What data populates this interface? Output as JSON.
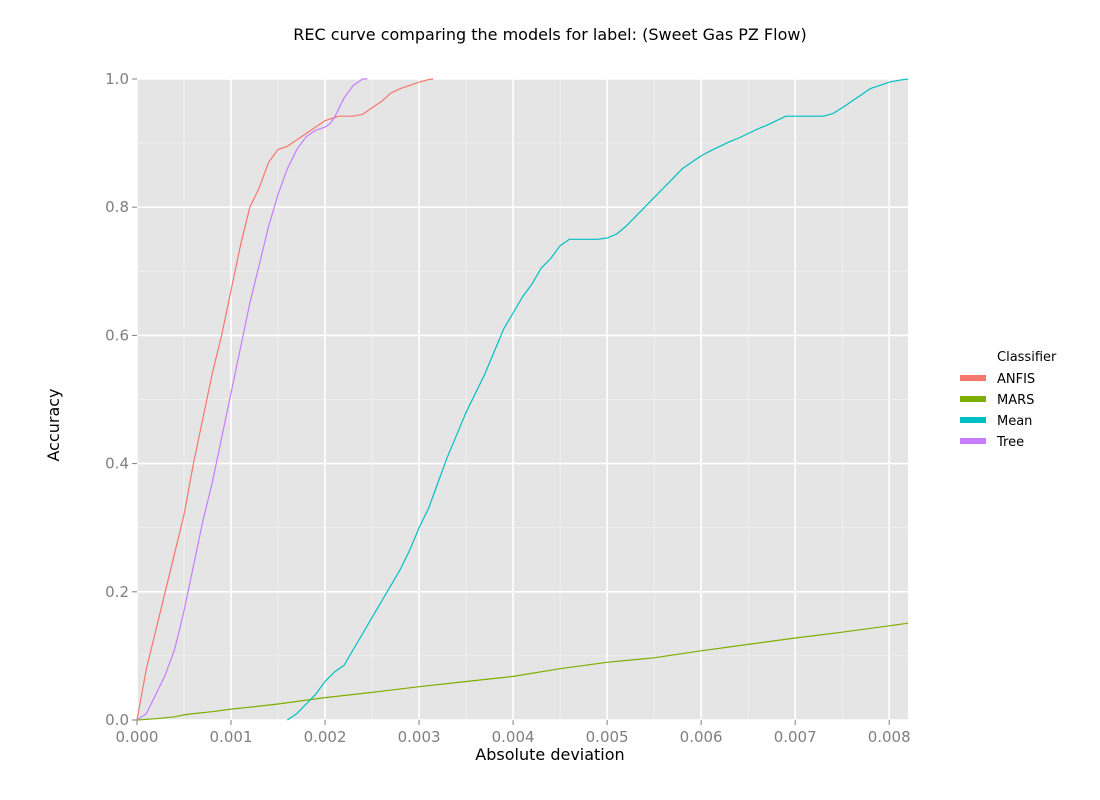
{
  "chart_data": {
    "type": "line",
    "title": "REC curve comparing the models for label: (Sweet Gas PZ Flow)",
    "xlabel": "Absolute deviation",
    "ylabel": "Accuracy",
    "xlim": [
      0,
      0.0082
    ],
    "ylim": [
      0,
      1.0
    ],
    "xticks": [
      0.0,
      0.001,
      0.002,
      0.003,
      0.004,
      0.005,
      0.006,
      0.007,
      0.008
    ],
    "xtick_labels": [
      "0.000",
      "0.001",
      "0.002",
      "0.003",
      "0.004",
      "0.005",
      "0.006",
      "0.007",
      "0.008"
    ],
    "yticks": [
      0.0,
      0.2,
      0.4,
      0.6,
      0.8,
      1.0
    ],
    "ytick_labels": [
      "0.0",
      "0.2",
      "0.4",
      "0.6",
      "0.8",
      "1.0"
    ],
    "grid": true,
    "background": "#e5e5e5",
    "legend": {
      "title": "Classifier",
      "placement": "right"
    },
    "series": [
      {
        "name": "ANFIS",
        "color": "#f8766d",
        "x": [
          0.0,
          5e-05,
          0.0001,
          0.0002,
          0.0003,
          0.0004,
          0.0005,
          0.0006,
          0.0007,
          0.0008,
          0.0009,
          0.001,
          0.0011,
          0.0012,
          0.0013,
          0.00135,
          0.0014,
          0.00145,
          0.0015,
          0.0016,
          0.0017,
          0.0018,
          0.0019,
          0.002,
          0.0021,
          0.00215,
          0.0022,
          0.0023,
          0.0024,
          0.0025,
          0.0026,
          0.0027,
          0.0028,
          0.0029,
          0.003,
          0.0031,
          0.00315
        ],
        "y": [
          0.0,
          0.04,
          0.08,
          0.14,
          0.2,
          0.26,
          0.32,
          0.4,
          0.47,
          0.54,
          0.6,
          0.67,
          0.74,
          0.8,
          0.83,
          0.85,
          0.87,
          0.88,
          0.89,
          0.895,
          0.905,
          0.915,
          0.925,
          0.935,
          0.94,
          0.942,
          0.942,
          0.942,
          0.945,
          0.955,
          0.965,
          0.978,
          0.985,
          0.99,
          0.995,
          0.999,
          1.0
        ]
      },
      {
        "name": "MARS",
        "color": "#7cae00",
        "x": [
          0.0,
          0.0002,
          0.0004,
          0.0005,
          0.0006,
          0.0008,
          0.001,
          0.0012,
          0.0015,
          0.002,
          0.0025,
          0.003,
          0.0035,
          0.004,
          0.0045,
          0.005,
          0.0055,
          0.006,
          0.0065,
          0.007,
          0.0075,
          0.008,
          0.0082
        ],
        "y": [
          0.0,
          0.002,
          0.005,
          0.008,
          0.01,
          0.013,
          0.017,
          0.02,
          0.025,
          0.035,
          0.043,
          0.052,
          0.06,
          0.068,
          0.08,
          0.09,
          0.097,
          0.108,
          0.118,
          0.128,
          0.137,
          0.147,
          0.151
        ]
      },
      {
        "name": "Mean",
        "color": "#00bfc4",
        "x": [
          0.0016,
          0.0017,
          0.0018,
          0.0019,
          0.002,
          0.0021,
          0.0022,
          0.0023,
          0.0024,
          0.0025,
          0.0026,
          0.0027,
          0.0028,
          0.0029,
          0.003,
          0.0031,
          0.0032,
          0.0033,
          0.0034,
          0.0035,
          0.0036,
          0.0037,
          0.0038,
          0.0039,
          0.004,
          0.0041,
          0.0042,
          0.0043,
          0.0044,
          0.0045,
          0.0046,
          0.0047,
          0.0048,
          0.0049,
          0.005,
          0.0051,
          0.0052,
          0.0053,
          0.0054,
          0.0055,
          0.0056,
          0.0057,
          0.0058,
          0.0059,
          0.006,
          0.0061,
          0.0062,
          0.0063,
          0.0064,
          0.0065,
          0.0066,
          0.0067,
          0.0068,
          0.0069,
          0.007,
          0.0071,
          0.0072,
          0.0073,
          0.0074,
          0.0075,
          0.0076,
          0.0077,
          0.0078,
          0.0079,
          0.008,
          0.0081,
          0.0082
        ],
        "y": [
          0.0,
          0.01,
          0.025,
          0.04,
          0.06,
          0.075,
          0.085,
          0.11,
          0.135,
          0.16,
          0.185,
          0.21,
          0.235,
          0.265,
          0.3,
          0.33,
          0.37,
          0.41,
          0.445,
          0.48,
          0.51,
          0.54,
          0.575,
          0.61,
          0.635,
          0.66,
          0.68,
          0.705,
          0.72,
          0.74,
          0.75,
          0.75,
          0.75,
          0.75,
          0.752,
          0.758,
          0.77,
          0.785,
          0.8,
          0.815,
          0.83,
          0.845,
          0.86,
          0.87,
          0.88,
          0.888,
          0.895,
          0.902,
          0.908,
          0.915,
          0.922,
          0.928,
          0.935,
          0.942,
          0.942,
          0.942,
          0.942,
          0.942,
          0.946,
          0.955,
          0.965,
          0.975,
          0.985,
          0.99,
          0.995,
          0.998,
          1.0
        ]
      },
      {
        "name": "Tree",
        "color": "#c77cff",
        "x": [
          0.0,
          0.0001,
          0.0002,
          0.0003,
          0.0004,
          0.0005,
          0.0006,
          0.0007,
          0.0008,
          0.0009,
          0.001,
          0.0011,
          0.0012,
          0.0013,
          0.0014,
          0.0015,
          0.0016,
          0.0017,
          0.0018,
          0.0019,
          0.002,
          0.00205,
          0.0021,
          0.0022,
          0.0023,
          0.0024,
          0.00245
        ],
        "y": [
          0.0,
          0.01,
          0.04,
          0.07,
          0.11,
          0.17,
          0.24,
          0.31,
          0.37,
          0.44,
          0.51,
          0.58,
          0.65,
          0.71,
          0.77,
          0.82,
          0.86,
          0.89,
          0.91,
          0.92,
          0.925,
          0.93,
          0.94,
          0.97,
          0.99,
          1.0,
          1.0
        ]
      }
    ]
  }
}
